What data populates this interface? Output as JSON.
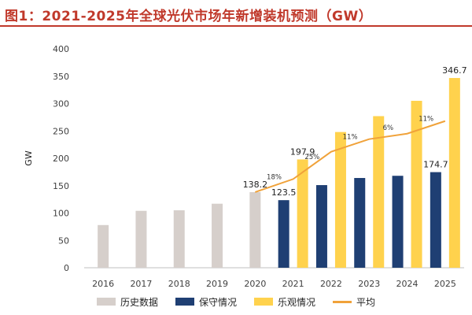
{
  "title": "图1：2021-2025年全球光伏市场年新增装机预测（GW）",
  "chart_data": {
    "type": "bar",
    "categories": [
      "2016",
      "2017",
      "2018",
      "2019",
      "2020",
      "2021",
      "2022",
      "2023",
      "2024",
      "2025"
    ],
    "ylabel": "GW",
    "ylim": [
      0,
      400
    ],
    "yticks": [
      0,
      50,
      100,
      150,
      200,
      250,
      300,
      350,
      400
    ],
    "grid": false,
    "legend_position": "bottom",
    "series": [
      {
        "name": "历史数据",
        "type": "bar",
        "color": "#d6cfcb",
        "values": [
          78,
          104,
          105,
          117,
          138.2,
          null,
          null,
          null,
          null,
          null
        ]
      },
      {
        "name": "保守情况",
        "type": "bar",
        "color": "#1f3f73",
        "values": [
          null,
          null,
          null,
          null,
          null,
          123.5,
          151,
          164,
          168,
          174.7
        ]
      },
      {
        "name": "乐观情况",
        "type": "bar",
        "color": "#ffd24d",
        "values": [
          null,
          null,
          null,
          null,
          null,
          197.9,
          248,
          277,
          305,
          346.7
        ]
      },
      {
        "name": "平均",
        "type": "line",
        "color": "#f0a23a",
        "values": [
          null,
          null,
          null,
          null,
          138.2,
          162,
          212,
          235,
          245,
          268
        ]
      }
    ],
    "data_labels": [
      {
        "text": "138.2",
        "category": "2020",
        "value": 138.2
      },
      {
        "text": "123.5",
        "category": "2021",
        "value": 123.5
      },
      {
        "text": "197.9",
        "category": "2021",
        "value": 197.9
      },
      {
        "text": "174.7",
        "category": "2025",
        "value": 174.7
      },
      {
        "text": "346.7",
        "category": "2025",
        "value": 346.7
      }
    ],
    "growth_labels": [
      {
        "text": "18%",
        "segment": "2020-2021"
      },
      {
        "text": "25%",
        "segment": "2021-2022"
      },
      {
        "text": "11%",
        "segment": "2022-2023"
      },
      {
        "text": "6%",
        "segment": "2023-2024"
      },
      {
        "text": "11%",
        "segment": "2024-2025"
      }
    ]
  }
}
